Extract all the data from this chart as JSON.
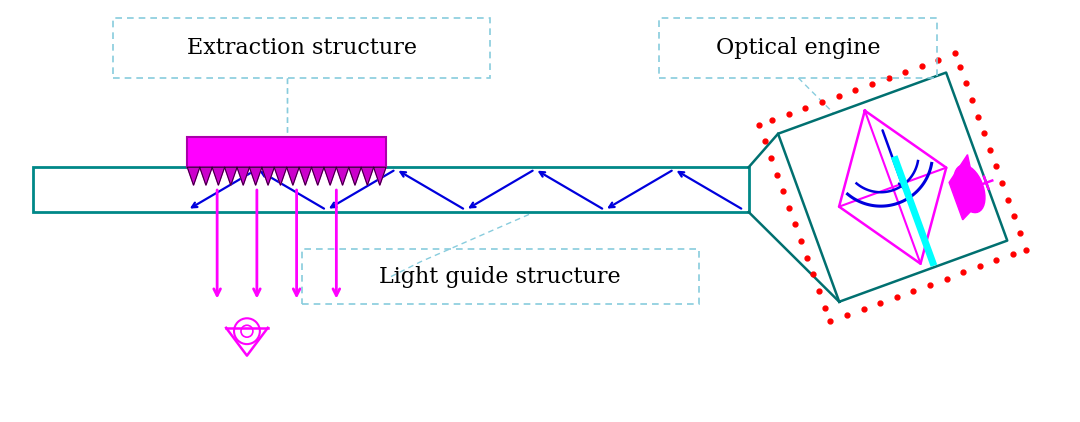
{
  "bg_color": "#ffffff",
  "teal_color": "#008888",
  "blue_color": "#0000dd",
  "magenta_color": "#ff00ff",
  "cyan_bright": "#00ffff",
  "red_color": "#ff0000",
  "green_teal": "#007070",
  "label_border": "#88ccdd",
  "title1": "Extraction structure",
  "title2": "Optical engine",
  "title3": "Light guide structure"
}
